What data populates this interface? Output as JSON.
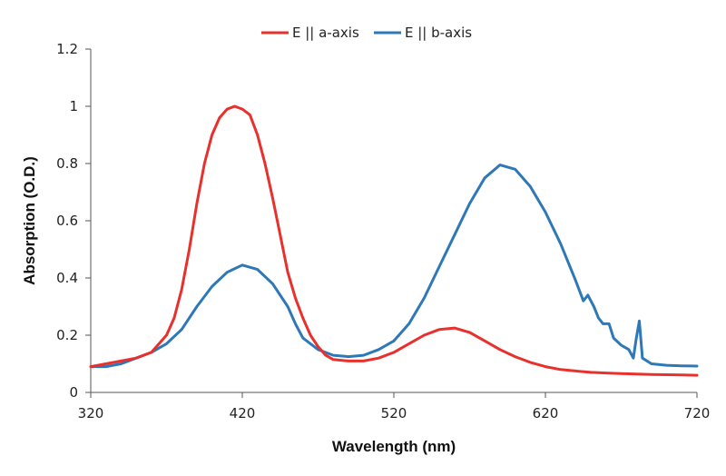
{
  "chart_data": {
    "type": "line",
    "title": "",
    "xlabel": "Wavelength (nm)",
    "ylabel": "Absorption (O.D.)",
    "xlim": [
      320,
      720
    ],
    "ylim": [
      0,
      1.2
    ],
    "x_ticks": [
      320,
      420,
      520,
      620,
      720
    ],
    "x_tick_labels": [
      "320",
      "420",
      "520",
      "620",
      "720"
    ],
    "y_ticks": [
      0,
      0.2,
      0.4,
      0.6,
      0.8,
      1,
      1.2
    ],
    "y_tick_labels": [
      "0",
      "0.2",
      "0.4",
      "0.6",
      "0.8",
      "1",
      "1.2"
    ],
    "grid": false,
    "legend": "top-center",
    "series": [
      {
        "name": "E || a-axis",
        "color": "#e8302c",
        "x": [
          320,
          330,
          340,
          350,
          360,
          370,
          375,
          380,
          385,
          390,
          395,
          400,
          405,
          410,
          415,
          420,
          425,
          430,
          435,
          440,
          445,
          450,
          455,
          460,
          465,
          470,
          475,
          480,
          490,
          500,
          510,
          520,
          530,
          540,
          550,
          560,
          570,
          580,
          590,
          600,
          610,
          620,
          630,
          640,
          650,
          660,
          670,
          680,
          690,
          700,
          710,
          720
        ],
        "y": [
          0.09,
          0.1,
          0.11,
          0.12,
          0.14,
          0.2,
          0.26,
          0.36,
          0.5,
          0.66,
          0.8,
          0.9,
          0.96,
          0.99,
          1.0,
          0.99,
          0.97,
          0.9,
          0.8,
          0.68,
          0.55,
          0.42,
          0.33,
          0.26,
          0.2,
          0.16,
          0.13,
          0.115,
          0.11,
          0.11,
          0.12,
          0.14,
          0.17,
          0.2,
          0.22,
          0.225,
          0.21,
          0.18,
          0.15,
          0.125,
          0.105,
          0.09,
          0.08,
          0.075,
          0.07,
          0.068,
          0.066,
          0.064,
          0.063,
          0.062,
          0.061,
          0.06
        ]
      },
      {
        "name": "E || b-axis",
        "color": "#2e78b8",
        "x": [
          320,
          330,
          340,
          350,
          360,
          370,
          380,
          390,
          400,
          410,
          420,
          430,
          440,
          450,
          455,
          460,
          465,
          470,
          480,
          490,
          500,
          510,
          520,
          530,
          540,
          550,
          560,
          570,
          580,
          590,
          600,
          610,
          620,
          630,
          640,
          645,
          648,
          652,
          655,
          658,
          662,
          665,
          670,
          675,
          678,
          680,
          682,
          684,
          690,
          700,
          710,
          720
        ],
        "y": [
          0.09,
          0.09,
          0.1,
          0.12,
          0.14,
          0.17,
          0.22,
          0.3,
          0.37,
          0.42,
          0.445,
          0.43,
          0.38,
          0.3,
          0.24,
          0.19,
          0.17,
          0.15,
          0.13,
          0.125,
          0.13,
          0.15,
          0.18,
          0.24,
          0.33,
          0.44,
          0.55,
          0.66,
          0.75,
          0.795,
          0.78,
          0.72,
          0.63,
          0.52,
          0.39,
          0.32,
          0.34,
          0.3,
          0.26,
          0.24,
          0.24,
          0.19,
          0.165,
          0.15,
          0.12,
          0.19,
          0.25,
          0.12,
          0.1,
          0.095,
          0.093,
          0.092
        ]
      }
    ]
  }
}
